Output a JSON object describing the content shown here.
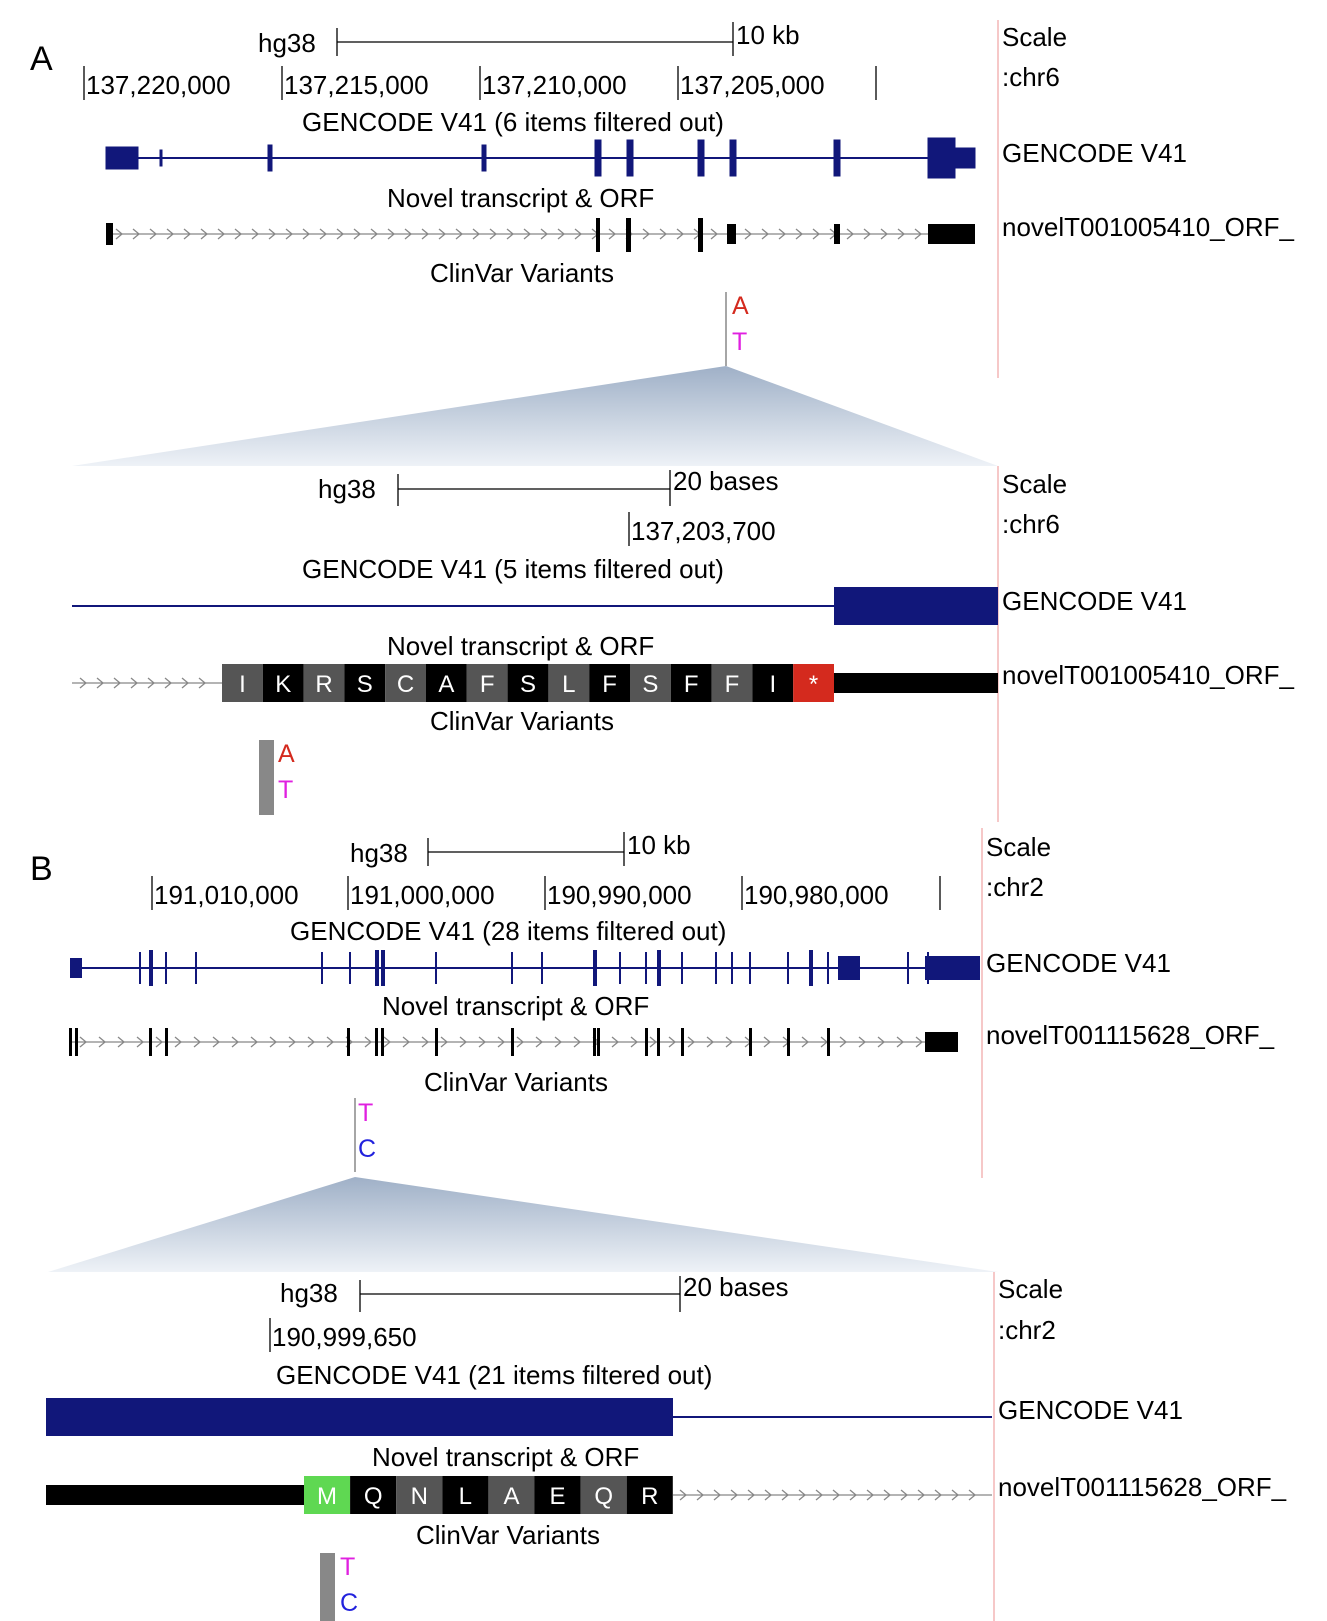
{
  "colors": {
    "gene": "#11177a",
    "orf": "#000000",
    "intron_arrow": "#888888",
    "boundary": "#f4b6b6",
    "zoom_gradient_top": "#a3b3c8",
    "zoom_gradient_bottom": "#eef2f7",
    "clinvar_bar": "#888888",
    "stop_codon": "#d42a1e",
    "start_codon": "#5fd852",
    "aa_dark": "#000000",
    "aa_grey": "#555555",
    "aa_light": "#777777"
  },
  "panel_a": {
    "label": "A",
    "overview": {
      "assembly": "hg38",
      "scale_text": "10 kb",
      "coordinates": [
        "137,220,000",
        "137,215,000",
        "137,210,000",
        "137,205,000"
      ],
      "scale_side": "Scale",
      "chrom_side": ":chr6",
      "gencode_title": "GENCODE V41 (6 items filtered out)",
      "gencode_side": "GENCODE V41",
      "novel_title": "Novel transcript & ORF",
      "novel_side": "novelT001005410_ORF_",
      "clinvar_title": "ClinVar Variants",
      "allele_ref": "A",
      "allele_alt": "T"
    },
    "zoom": {
      "assembly": "hg38",
      "scale_text": "20 bases",
      "coordinate": "137,203,700",
      "scale_side": "Scale",
      "chrom_side": ":chr6",
      "gencode_title": "GENCODE V41 (5 items filtered out)",
      "gencode_side": "GENCODE V41",
      "novel_title": "Novel transcript & ORF",
      "novel_side": "novelT001005410_ORF_",
      "amino_acids": [
        "I",
        "K",
        "R",
        "S",
        "C",
        "A",
        "F",
        "S",
        "L",
        "F",
        "S",
        "F",
        "F",
        "I",
        "*"
      ],
      "clinvar_title": "ClinVar Variants",
      "allele_ref": "A",
      "allele_alt": "T"
    }
  },
  "panel_b": {
    "label": "B",
    "overview": {
      "assembly": "hg38",
      "scale_text": "10 kb",
      "coordinates": [
        "191,010,000",
        "191,000,000",
        "190,990,000",
        "190,980,000"
      ],
      "scale_side": "Scale",
      "chrom_side": ":chr2",
      "gencode_title": "GENCODE V41 (28 items filtered out)",
      "gencode_side": "GENCODE V41",
      "novel_title": "Novel transcript & ORF",
      "novel_side": "novelT001115628_ORF_",
      "clinvar_title": "ClinVar Variants",
      "allele_ref": "T",
      "allele_alt": "C"
    },
    "zoom": {
      "assembly": "hg38",
      "scale_text": "20 bases",
      "coordinate": "190,999,650",
      "scale_side": "Scale",
      "chrom_side": ":chr2",
      "gencode_title": "GENCODE V41 (21 items filtered out)",
      "gencode_side": "GENCODE V41",
      "novel_title": "Novel transcript & ORF",
      "novel_side": "novelT001115628_ORF_",
      "amino_acids": [
        "M",
        "Q",
        "N",
        "L",
        "A",
        "E",
        "Q",
        "R"
      ],
      "clinvar_title": "ClinVar Variants",
      "allele_ref": "T",
      "allele_alt": "C"
    }
  }
}
